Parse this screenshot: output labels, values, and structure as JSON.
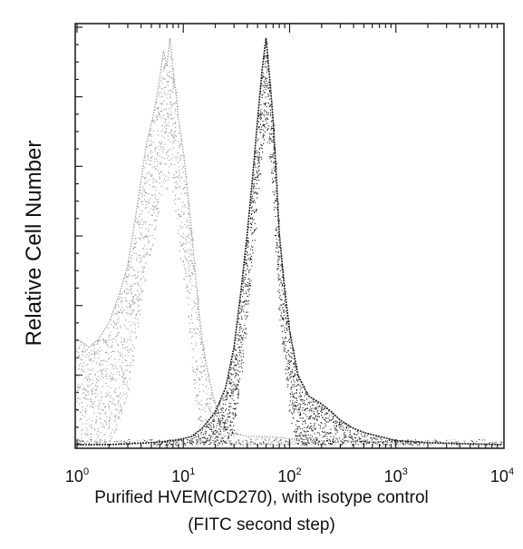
{
  "chart_data": {
    "type": "area",
    "title": "",
    "xlabel_line1": "Purified HVEM(CD270), with isotype control",
    "xlabel_line2": "(FITC second step)",
    "ylabel": "Relative Cell Number",
    "xscale": "log",
    "xlim": [
      1,
      10000
    ],
    "ylim": [
      0,
      1
    ],
    "grid": false,
    "x_ticks": [
      {
        "value": 1,
        "base": "10",
        "exp": "0"
      },
      {
        "value": 10,
        "base": "10",
        "exp": "1"
      },
      {
        "value": 100,
        "base": "10",
        "exp": "2"
      },
      {
        "value": 1000,
        "base": "10",
        "exp": "3"
      },
      {
        "value": 10000,
        "base": "10",
        "exp": "4"
      }
    ],
    "series": [
      {
        "color": "#9a9a9a",
        "x": [
          1.0,
          1.3,
          1.6,
          2.0,
          2.5,
          3.0,
          3.5,
          4.0,
          4.5,
          5.0,
          5.5,
          6.0,
          6.5,
          7.0,
          7.5,
          8.0,
          8.5,
          9.0,
          10,
          11,
          12,
          13,
          14,
          15,
          17,
          19,
          22,
          25,
          30,
          40,
          60,
          100,
          200,
          500,
          1000,
          3000,
          10000
        ],
        "y": [
          0.26,
          0.24,
          0.26,
          0.3,
          0.37,
          0.44,
          0.55,
          0.65,
          0.74,
          0.79,
          0.84,
          0.9,
          0.97,
          0.93,
          1.0,
          0.92,
          0.87,
          0.8,
          0.72,
          0.62,
          0.52,
          0.42,
          0.33,
          0.26,
          0.18,
          0.12,
          0.07,
          0.04,
          0.03,
          0.02,
          0.02,
          0.015,
          0.01,
          0.008,
          0.005,
          0.003,
          0.0
        ]
      },
      {
        "color": "#1a1a1a",
        "x": [
          1.0,
          2.0,
          5.0,
          8.0,
          10,
          12,
          15,
          20,
          25,
          30,
          35,
          40,
          45,
          50,
          55,
          60,
          65,
          70,
          75,
          80,
          90,
          100,
          120,
          150,
          200,
          250,
          300,
          400,
          500,
          700,
          1000,
          2000,
          5000,
          10000
        ],
        "y": [
          0.0,
          0.0,
          0.005,
          0.01,
          0.015,
          0.02,
          0.04,
          0.08,
          0.14,
          0.24,
          0.38,
          0.52,
          0.66,
          0.8,
          0.92,
          1.0,
          0.9,
          0.8,
          0.66,
          0.52,
          0.38,
          0.28,
          0.17,
          0.12,
          0.1,
          0.08,
          0.06,
          0.04,
          0.03,
          0.02,
          0.01,
          0.005,
          0.002,
          0.0
        ]
      }
    ]
  }
}
